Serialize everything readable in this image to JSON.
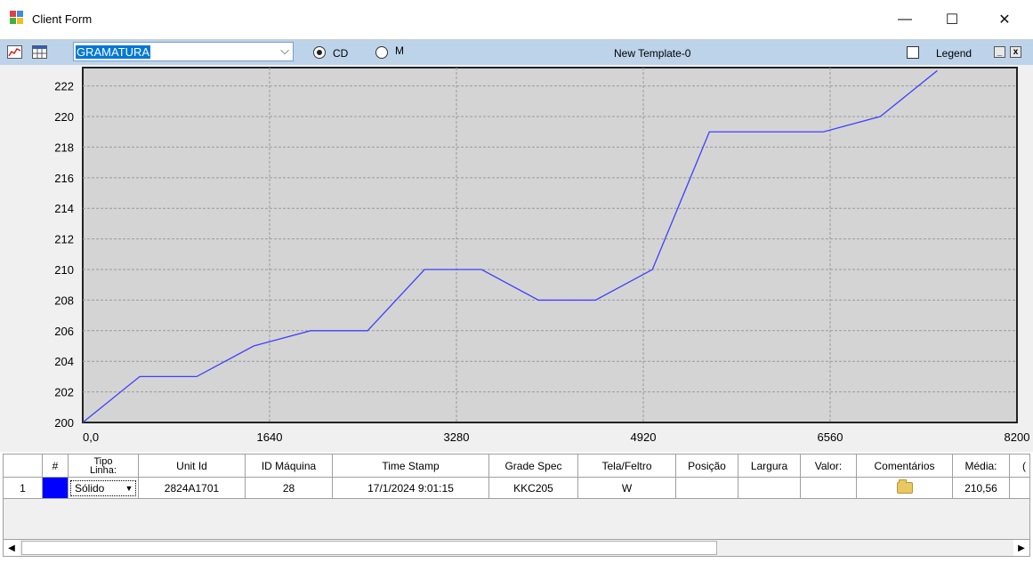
{
  "window": {
    "title": "Client Form",
    "minimize_glyph": "—",
    "maximize_glyph": "☐",
    "close_glyph": "✕",
    "icon": "app-window-icon"
  },
  "toolbar": {
    "chart_icon": "line-chart-icon",
    "table_icon": "grid-table-icon",
    "variable_select": "GRAMATURA",
    "radio_cd_label": "CD",
    "radio_m_label": "M",
    "radio_selected": "CD",
    "template_name": "New Template-0",
    "legend_label": "Legend",
    "legend_checked": false,
    "minimize_btn": "_",
    "close_btn": "x"
  },
  "chart_data": {
    "type": "line",
    "x": [
      0,
      500,
      1000,
      1500,
      2000,
      2500,
      3000,
      3500,
      4000,
      4500,
      5000,
      5500,
      6000,
      6500,
      7000,
      7500
    ],
    "y": [
      200,
      203,
      203,
      205,
      206,
      206,
      210,
      210,
      208,
      208,
      210,
      219,
      219,
      219,
      220,
      223
    ],
    "x_ticks": [
      "0,0",
      "1640",
      "3280",
      "4920",
      "6560",
      "8200"
    ],
    "y_ticks": [
      "200",
      "202",
      "204",
      "206",
      "208",
      "210",
      "212",
      "214",
      "216",
      "218",
      "220",
      "222"
    ],
    "xlim": [
      0,
      8200
    ],
    "ylim": [
      200,
      223.2
    ],
    "grid": true,
    "line_color": "#4040ff"
  },
  "table": {
    "headers": [
      "#",
      "Tipo Linha:",
      "Unit Id",
      "ID Máquina",
      "Time Stamp",
      "Grade Spec",
      "Tela/Feltro",
      "Posição",
      "Largura",
      "Valor:",
      "Comentários",
      "Média:",
      "("
    ],
    "rows": [
      {
        "index": "1",
        "color": "#0000ff",
        "tipo_linha": "Sólido",
        "unit_id": "2824A1701",
        "id_maquina": "28",
        "time_stamp": "17/1/2024 9:01:15",
        "grade_spec": "KKC205",
        "tela_feltro": "W",
        "posicao": "",
        "largura": "",
        "valor": "",
        "comentarios_icon": "folder-icon",
        "media": "210,56"
      }
    ]
  },
  "scrollbar": {
    "left_arrow": "◀",
    "right_arrow": "▶"
  }
}
